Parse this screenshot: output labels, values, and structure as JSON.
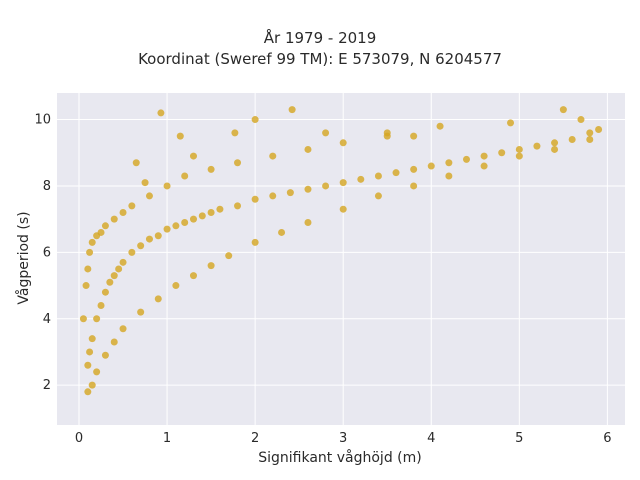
{
  "chart_data": {
    "type": "scatter",
    "title": [
      "År 1979 - 2019",
      "Koordinat (Sweref 99 TM): E 573079, N 6204577"
    ],
    "xlabel": "Signifikant våghöjd (m)",
    "ylabel": "Vågperiod (s)",
    "xlim": [
      -0.25,
      6.2
    ],
    "ylim": [
      0.8,
      10.8
    ],
    "xticks": [
      0,
      1,
      2,
      3,
      4,
      5,
      6
    ],
    "yticks": [
      2,
      4,
      6,
      8,
      10
    ],
    "grid": true,
    "legend": "none",
    "series": [
      {
        "x": [
          0.1,
          0.12,
          0.15,
          0.2,
          0.25,
          0.3,
          0.35,
          0.4,
          0.45,
          0.5,
          0.6,
          0.7,
          0.8,
          0.9,
          1.0,
          1.1,
          1.2,
          1.3,
          1.4,
          1.5,
          1.6,
          1.8,
          2.0,
          2.2,
          2.4,
          2.6,
          2.8,
          3.0,
          3.2,
          3.4,
          3.6,
          3.8,
          4.0,
          4.2,
          4.4,
          4.6,
          4.8,
          5.0,
          5.2,
          5.4,
          5.6,
          5.8,
          0.1,
          0.15,
          0.2,
          0.3,
          0.4,
          0.5,
          0.7,
          0.9,
          1.1,
          1.3,
          1.5,
          1.7,
          2.0,
          2.3,
          2.6,
          3.0,
          3.4,
          3.8,
          4.2,
          4.6,
          5.0,
          5.4,
          5.8,
          0.05,
          0.08,
          0.1,
          0.12,
          0.15,
          0.2,
          0.25,
          0.3,
          0.4,
          0.5,
          0.6,
          0.8,
          1.0,
          1.2,
          1.5,
          1.8,
          2.2,
          2.6,
          3.0,
          3.5,
          0.93,
          1.15,
          2.0,
          2.42,
          1.77,
          3.5,
          3.8,
          5.5,
          5.7,
          5.9,
          0.65,
          0.75,
          1.3,
          2.8,
          4.1,
          4.9
        ],
        "y": [
          2.6,
          3.0,
          3.4,
          4.0,
          4.4,
          4.8,
          5.1,
          5.3,
          5.5,
          5.7,
          6.0,
          6.2,
          6.4,
          6.5,
          6.7,
          6.8,
          6.9,
          7.0,
          7.1,
          7.2,
          7.3,
          7.4,
          7.6,
          7.7,
          7.8,
          7.9,
          8.0,
          8.1,
          8.2,
          8.3,
          8.4,
          8.5,
          8.6,
          8.7,
          8.8,
          8.9,
          9.0,
          9.1,
          9.2,
          9.3,
          9.4,
          9.6,
          1.8,
          2.0,
          2.4,
          2.9,
          3.3,
          3.7,
          4.2,
          4.6,
          5.0,
          5.3,
          5.6,
          5.9,
          6.3,
          6.6,
          6.9,
          7.3,
          7.7,
          8.0,
          8.3,
          8.6,
          8.9,
          9.1,
          9.4,
          4.0,
          5.0,
          5.5,
          6.0,
          6.3,
          6.5,
          6.6,
          6.8,
          7.0,
          7.2,
          7.4,
          7.7,
          8.0,
          8.3,
          8.5,
          8.7,
          8.9,
          9.1,
          9.3,
          9.5,
          10.2,
          9.5,
          10.0,
          10.3,
          9.6,
          9.6,
          9.5,
          10.3,
          10.0,
          9.7,
          8.7,
          8.1,
          8.9,
          9.6,
          9.8,
          9.9
        ]
      }
    ]
  }
}
